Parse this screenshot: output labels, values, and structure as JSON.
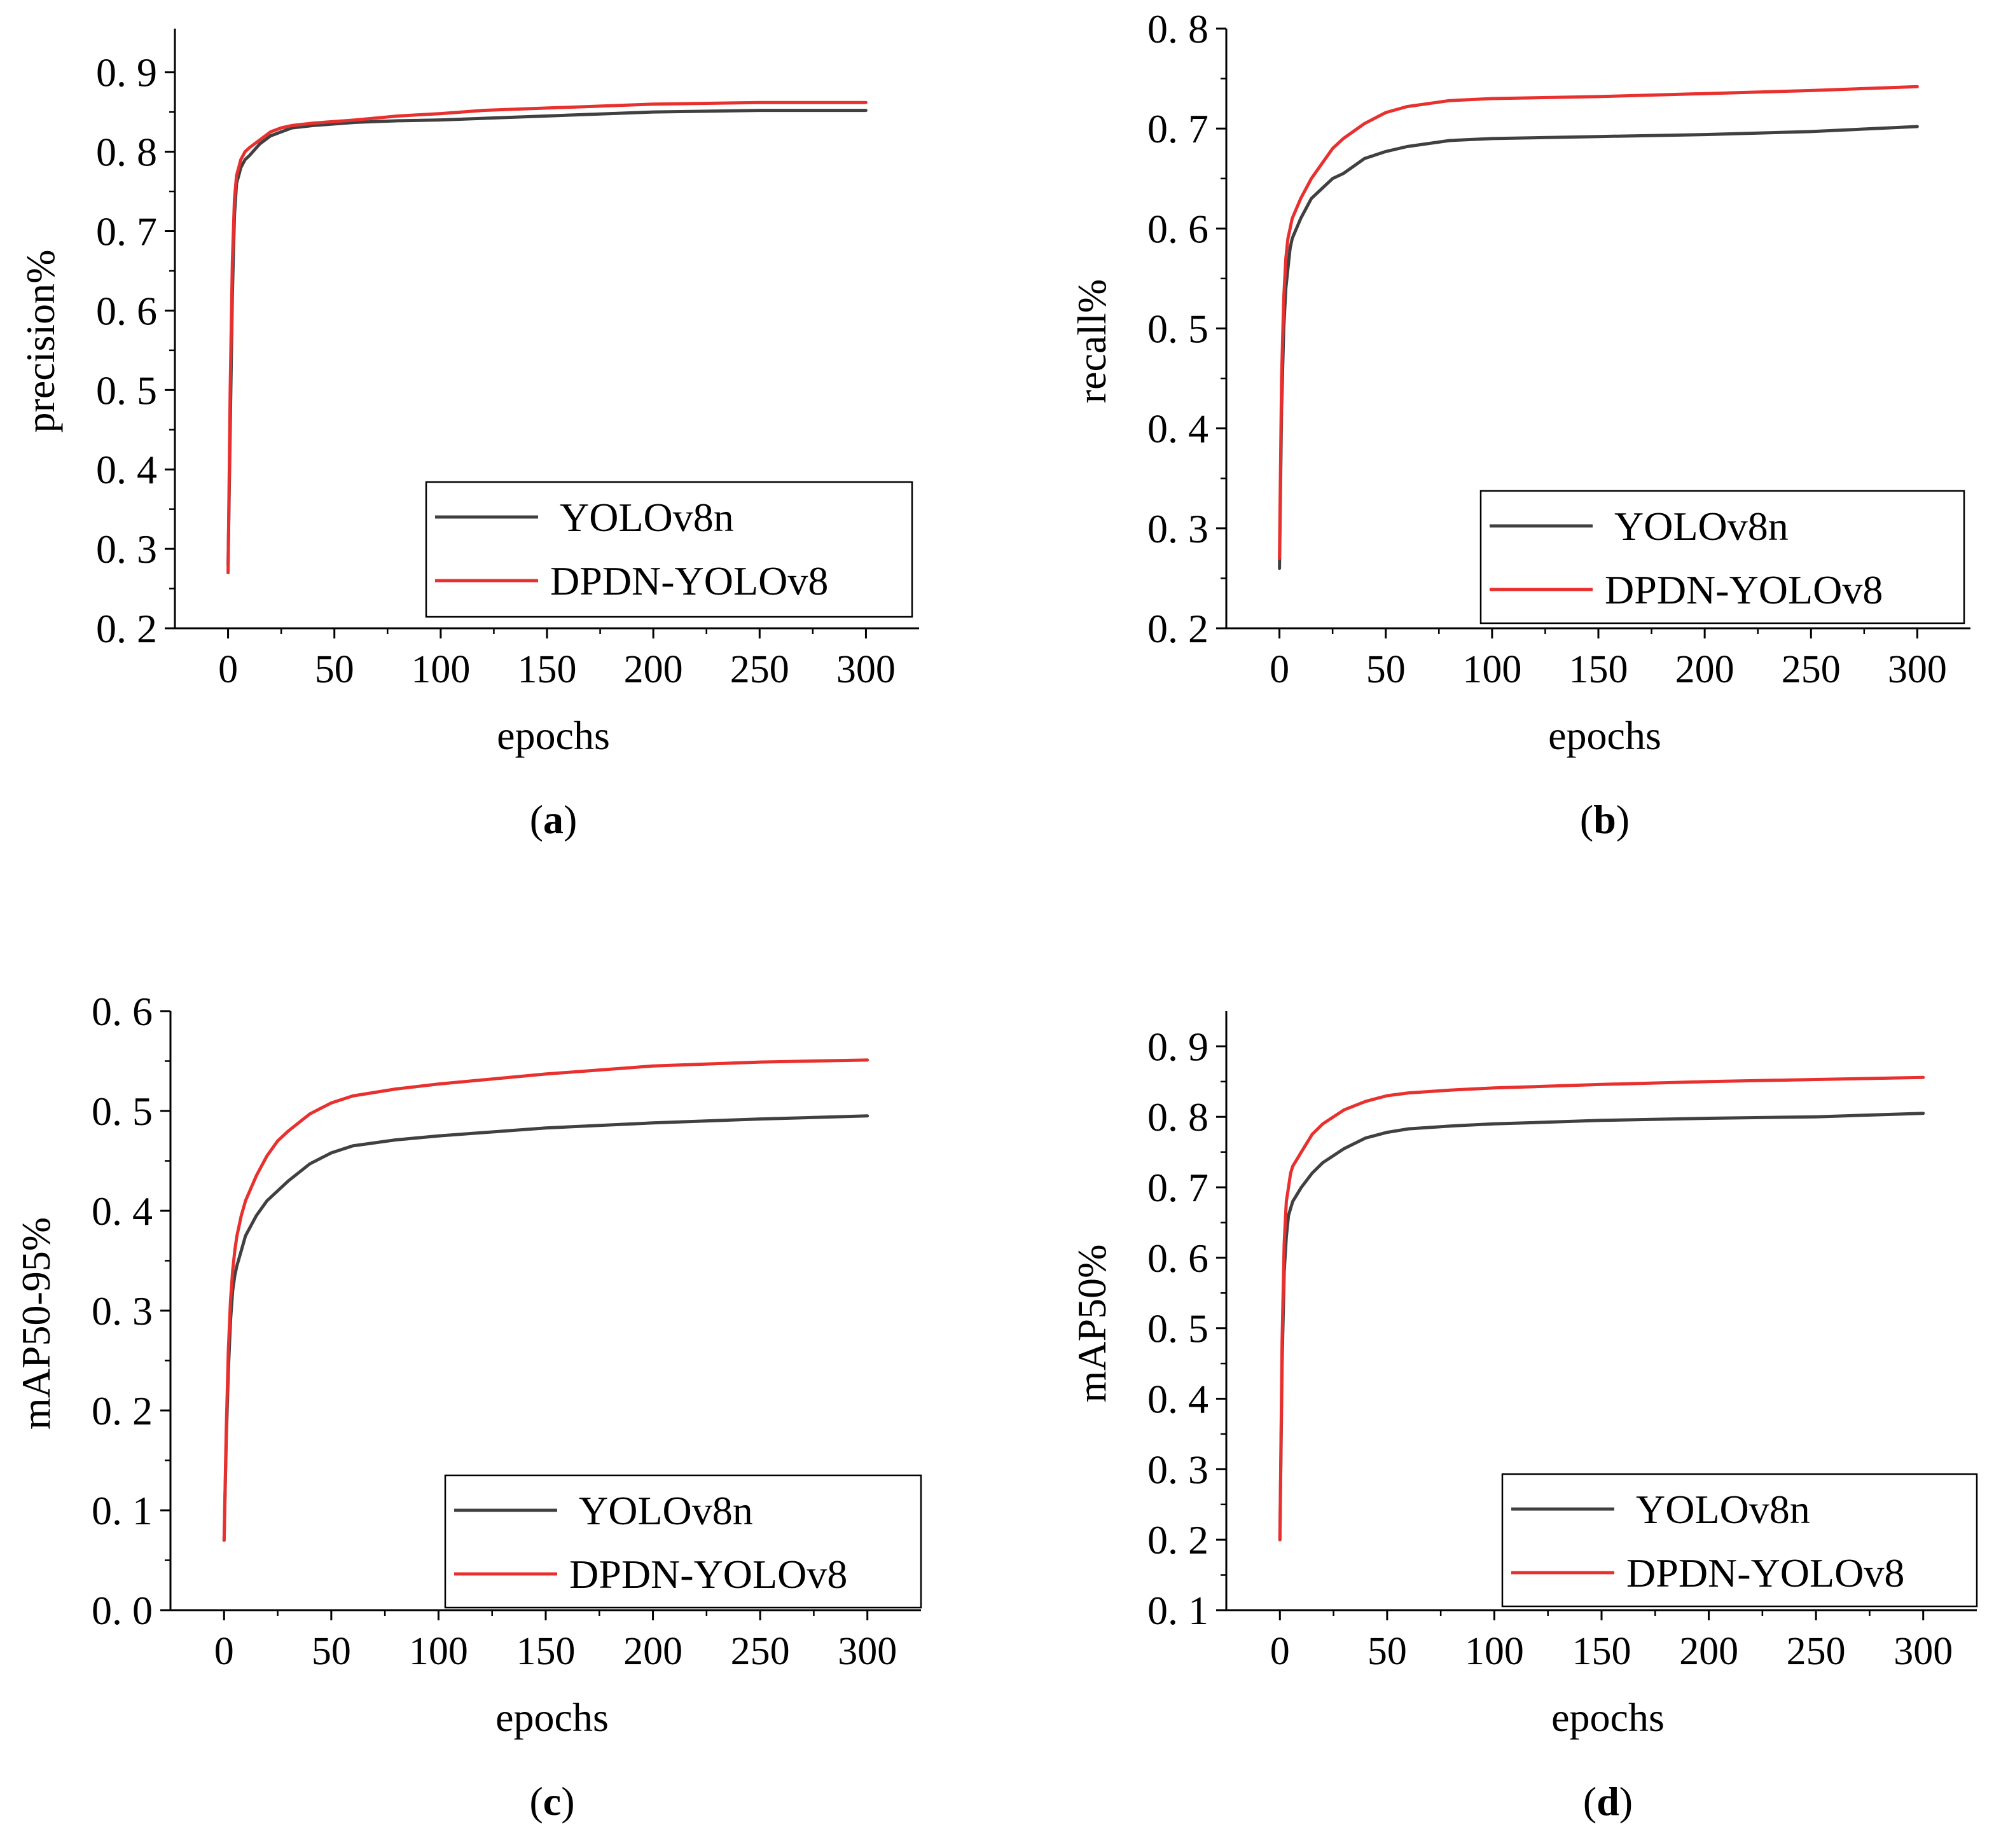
{
  "colors": {
    "yolov8n": "#404040",
    "dpdn": "#e8302e",
    "axis": "#000000"
  },
  "chart_data": [
    {
      "type": "line",
      "panel_label": "a",
      "xlabel": "epochs",
      "ylabel": "precision%",
      "xlim": [
        -25,
        325
      ],
      "ylim": [
        0.2,
        0.955
      ],
      "xticks": [
        "0",
        "50",
        "100",
        "150",
        "200",
        "250",
        "300"
      ],
      "xtick_values": [
        0,
        50,
        100,
        150,
        200,
        250,
        300
      ],
      "yticks": [
        "0. 2",
        "0. 3",
        "0. 4",
        "0. 5",
        "0. 6",
        "0. 7",
        "0. 8",
        "0. 9"
      ],
      "ytick_values": [
        0.2,
        0.3,
        0.4,
        0.5,
        0.6,
        0.7,
        0.8,
        0.9
      ],
      "legend_position": "bottom-right",
      "series": [
        {
          "name": "YOLOv8n",
          "color_key": "yolov8n",
          "x": [
            0,
            1,
            2,
            3,
            4,
            5,
            6,
            8,
            10,
            15,
            20,
            25,
            30,
            40,
            50,
            60,
            80,
            100,
            120,
            150,
            180,
            200,
            250,
            300
          ],
          "y": [
            0.28,
            0.45,
            0.62,
            0.72,
            0.76,
            0.77,
            0.78,
            0.79,
            0.795,
            0.81,
            0.82,
            0.825,
            0.83,
            0.833,
            0.835,
            0.837,
            0.839,
            0.84,
            0.842,
            0.845,
            0.848,
            0.85,
            0.852,
            0.852
          ]
        },
        {
          "name": "DPDN-YOLOv8",
          "color_key": "dpdn",
          "x": [
            0,
            1,
            2,
            3,
            4,
            5,
            6,
            8,
            10,
            15,
            20,
            25,
            30,
            40,
            50,
            60,
            80,
            100,
            120,
            150,
            180,
            200,
            250,
            300
          ],
          "y": [
            0.27,
            0.5,
            0.66,
            0.74,
            0.77,
            0.78,
            0.79,
            0.8,
            0.805,
            0.815,
            0.825,
            0.83,
            0.833,
            0.836,
            0.838,
            0.84,
            0.845,
            0.848,
            0.852,
            0.855,
            0.858,
            0.86,
            0.862,
            0.862
          ]
        }
      ]
    },
    {
      "type": "line",
      "panel_label": "b",
      "xlabel": "epochs",
      "ylabel": "recall%",
      "xlim": [
        -25,
        325
      ],
      "ylim": [
        0.2,
        0.8
      ],
      "xticks": [
        "0",
        "50",
        "100",
        "150",
        "200",
        "250",
        "300"
      ],
      "xtick_values": [
        0,
        50,
        100,
        150,
        200,
        250,
        300
      ],
      "yticks": [
        "0. 2",
        "0. 3",
        "0. 4",
        "0. 5",
        "0. 6",
        "0. 7",
        "0. 8"
      ],
      "ytick_values": [
        0.2,
        0.3,
        0.4,
        0.5,
        0.6,
        0.7,
        0.8
      ],
      "legend_position": "bottom-right",
      "series": [
        {
          "name": "YOLOv8n",
          "color_key": "yolov8n",
          "x": [
            0,
            1,
            2,
            3,
            4,
            5,
            6,
            8,
            10,
            15,
            20,
            25,
            30,
            40,
            50,
            60,
            80,
            100,
            150,
            200,
            250,
            300
          ],
          "y": [
            0.26,
            0.42,
            0.5,
            0.54,
            0.56,
            0.58,
            0.59,
            0.6,
            0.61,
            0.63,
            0.64,
            0.65,
            0.655,
            0.67,
            0.677,
            0.682,
            0.688,
            0.69,
            0.692,
            0.694,
            0.697,
            0.702
          ]
        },
        {
          "name": "DPDN-YOLOv8",
          "color_key": "dpdn",
          "x": [
            0,
            1,
            2,
            3,
            4,
            5,
            6,
            8,
            10,
            15,
            20,
            25,
            30,
            40,
            50,
            60,
            80,
            100,
            150,
            200,
            250,
            300
          ],
          "y": [
            0.27,
            0.45,
            0.53,
            0.57,
            0.59,
            0.6,
            0.61,
            0.62,
            0.63,
            0.65,
            0.665,
            0.68,
            0.69,
            0.705,
            0.716,
            0.722,
            0.728,
            0.73,
            0.732,
            0.735,
            0.738,
            0.742
          ]
        }
      ]
    },
    {
      "type": "line",
      "panel_label": "c",
      "xlabel": "epochs",
      "ylabel": "mAP50-95%",
      "xlim": [
        -25,
        325
      ],
      "ylim": [
        0.0,
        0.6
      ],
      "xticks": [
        "0",
        "50",
        "100",
        "150",
        "200",
        "250",
        "300"
      ],
      "xtick_values": [
        0,
        50,
        100,
        150,
        200,
        250,
        300
      ],
      "yticks": [
        "0. 0",
        "0. 1",
        "0. 2",
        "0. 3",
        "0. 4",
        "0. 5",
        "0. 6"
      ],
      "ytick_values": [
        0.0,
        0.1,
        0.2,
        0.3,
        0.4,
        0.5,
        0.6
      ],
      "legend_position": "bottom-right",
      "series": [
        {
          "name": "YOLOv8n",
          "color_key": "yolov8n",
          "x": [
            0,
            1,
            2,
            3,
            4,
            5,
            6,
            8,
            10,
            15,
            20,
            25,
            30,
            40,
            50,
            60,
            80,
            100,
            150,
            200,
            250,
            300
          ],
          "y": [
            0.07,
            0.17,
            0.24,
            0.29,
            0.32,
            0.335,
            0.345,
            0.36,
            0.375,
            0.395,
            0.41,
            0.42,
            0.43,
            0.447,
            0.458,
            0.465,
            0.471,
            0.475,
            0.483,
            0.488,
            0.492,
            0.495
          ]
        },
        {
          "name": "DPDN-YOLOv8",
          "color_key": "dpdn",
          "x": [
            0,
            1,
            2,
            3,
            4,
            5,
            6,
            8,
            10,
            15,
            20,
            25,
            30,
            40,
            50,
            60,
            80,
            100,
            150,
            200,
            250,
            300
          ],
          "y": [
            0.07,
            0.18,
            0.26,
            0.31,
            0.34,
            0.36,
            0.375,
            0.395,
            0.41,
            0.435,
            0.455,
            0.47,
            0.48,
            0.497,
            0.508,
            0.515,
            0.522,
            0.527,
            0.537,
            0.545,
            0.549,
            0.551
          ]
        }
      ]
    },
    {
      "type": "line",
      "panel_label": "d",
      "xlabel": "epochs",
      "ylabel": "mAP50%",
      "xlim": [
        -25,
        325
      ],
      "ylim": [
        0.1,
        0.95
      ],
      "xticks": [
        "0",
        "50",
        "100",
        "150",
        "200",
        "250",
        "300"
      ],
      "xtick_values": [
        0,
        50,
        100,
        150,
        200,
        250,
        300
      ],
      "yticks": [
        "0. 1",
        "0. 2",
        "0. 3",
        "0. 4",
        "0. 5",
        "0. 6",
        "0. 7",
        "0. 8",
        "0. 9"
      ],
      "ytick_values": [
        0.1,
        0.2,
        0.3,
        0.4,
        0.5,
        0.6,
        0.7,
        0.8,
        0.9
      ],
      "legend_position": "bottom-right",
      "series": [
        {
          "name": "YOLOv8n",
          "color_key": "yolov8n",
          "x": [
            0,
            1,
            2,
            3,
            4,
            5,
            6,
            8,
            10,
            15,
            20,
            25,
            30,
            40,
            50,
            60,
            80,
            100,
            150,
            200,
            250,
            300
          ],
          "y": [
            0.2,
            0.45,
            0.58,
            0.63,
            0.66,
            0.67,
            0.68,
            0.69,
            0.7,
            0.72,
            0.735,
            0.745,
            0.755,
            0.77,
            0.778,
            0.783,
            0.787,
            0.79,
            0.795,
            0.798,
            0.8,
            0.805
          ]
        },
        {
          "name": "DPDN-YOLOv8",
          "color_key": "dpdn",
          "x": [
            0,
            1,
            2,
            3,
            4,
            5,
            6,
            8,
            10,
            15,
            20,
            25,
            30,
            40,
            50,
            60,
            80,
            100,
            150,
            200,
            250,
            300
          ],
          "y": [
            0.2,
            0.48,
            0.62,
            0.68,
            0.7,
            0.72,
            0.73,
            0.74,
            0.75,
            0.775,
            0.79,
            0.8,
            0.81,
            0.822,
            0.83,
            0.834,
            0.838,
            0.841,
            0.846,
            0.85,
            0.853,
            0.856
          ]
        }
      ]
    }
  ]
}
